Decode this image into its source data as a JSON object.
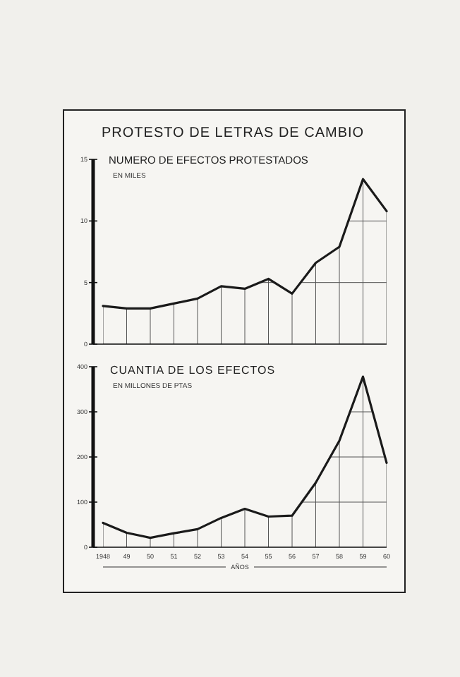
{
  "chart_data": [
    {
      "type": "line",
      "title": "PROTESTO DE LETRAS DE CAMBIO",
      "subtitle": "NUMERO DE EFECTOS PROTESTADOS",
      "annotations": [
        "EN MILES"
      ],
      "categories": [
        "1948",
        "49",
        "50",
        "51",
        "52",
        "53",
        "54",
        "55",
        "56",
        "57",
        "58",
        "59",
        "60"
      ],
      "series": [
        {
          "color": "#1a1a1a",
          "values": [
            3.1,
            2.9,
            2.9,
            3.3,
            3.7,
            4.7,
            4.5,
            5.3,
            4.1,
            6.6,
            7.9,
            13.4,
            10.8
          ]
        }
      ],
      "ylim": [
        0,
        15
      ],
      "yticks": [
        0,
        5,
        10,
        15
      ],
      "grid": true,
      "tick_labels": "y",
      "marker": "none",
      "line_style": "solid"
    },
    {
      "type": "line",
      "title": "CUANTIA DE LOS EFECTOS",
      "annotations": [
        "EN MILLONES DE PTAS"
      ],
      "xlabel": "AÑOS",
      "categories": [
        "1948",
        "49",
        "50",
        "51",
        "52",
        "53",
        "54",
        "55",
        "56",
        "57",
        "58",
        "59",
        "60"
      ],
      "series": [
        {
          "color": "#1a1a1a",
          "values": [
            54,
            32,
            21,
            31,
            40,
            65,
            85,
            68,
            70,
            143,
            236,
            378,
            187
          ]
        }
      ],
      "ylim": [
        0,
        400
      ],
      "yticks": [
        0,
        100,
        200,
        300,
        400
      ],
      "grid": true,
      "marker": "none",
      "line_style": "solid"
    }
  ]
}
